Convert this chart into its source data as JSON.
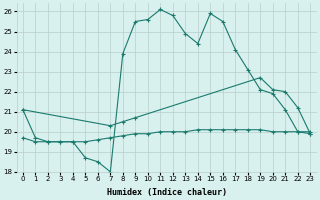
{
  "line1_x": [
    0,
    1,
    2,
    3,
    4,
    5,
    6,
    7,
    8,
    9,
    10,
    11,
    12,
    13,
    14,
    15,
    16,
    17,
    18,
    19,
    20,
    21,
    22,
    23
  ],
  "line1_y": [
    21.1,
    19.7,
    19.5,
    19.5,
    19.5,
    18.7,
    18.5,
    18.0,
    23.9,
    25.5,
    25.6,
    26.1,
    25.8,
    24.9,
    24.4,
    25.9,
    25.5,
    24.1,
    23.1,
    22.1,
    21.9,
    21.1,
    20.0,
    19.9
  ],
  "line2_x": [
    0,
    7,
    8,
    9,
    19,
    20,
    21,
    22,
    23
  ],
  "line2_y": [
    21.1,
    20.3,
    20.5,
    20.7,
    22.7,
    22.1,
    22.0,
    21.2,
    19.9
  ],
  "line3_x": [
    0,
    1,
    2,
    3,
    4,
    5,
    6,
    7,
    8,
    9,
    10,
    11,
    12,
    13,
    14,
    15,
    16,
    17,
    18,
    19,
    20,
    21,
    22,
    23
  ],
  "line3_y": [
    19.7,
    19.5,
    19.5,
    19.5,
    19.5,
    19.5,
    19.6,
    19.7,
    19.8,
    19.9,
    19.9,
    20.0,
    20.0,
    20.0,
    20.1,
    20.1,
    20.1,
    20.1,
    20.1,
    20.1,
    20.0,
    20.0,
    20.0,
    20.0
  ],
  "color": "#1a7a6e",
  "bg_color": "#d8f0ee",
  "grid_color": "#b8ceca",
  "xlim": [
    -0.5,
    23.5
  ],
  "ylim": [
    18,
    26.4
  ],
  "xlabel": "Humidex (Indice chaleur)",
  "yticks": [
    18,
    19,
    20,
    21,
    22,
    23,
    24,
    25,
    26
  ],
  "xticks": [
    0,
    1,
    2,
    3,
    4,
    5,
    6,
    7,
    8,
    9,
    10,
    11,
    12,
    13,
    14,
    15,
    16,
    17,
    18,
    19,
    20,
    21,
    22,
    23
  ]
}
